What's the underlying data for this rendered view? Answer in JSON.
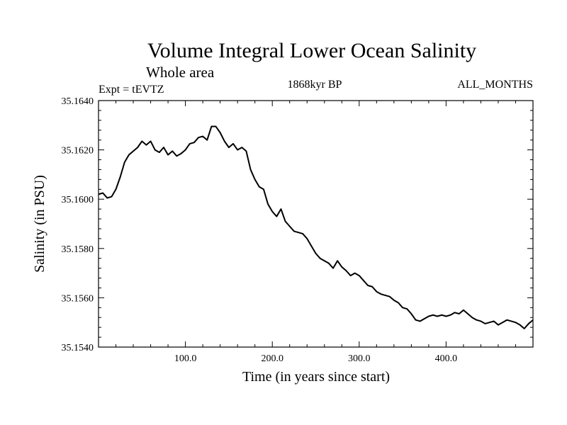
{
  "chart_data": {
    "type": "line",
    "title": "Volume Integral Lower Ocean Salinity",
    "subtitle": "Whole area",
    "left_label": "Expt = tEVTZ",
    "center_label": "1868kyr BP",
    "right_label": "ALL_MONTHS",
    "xlabel": "Time (in years since start)",
    "ylabel": "Salinity (in PSU)",
    "xlim": [
      0,
      500
    ],
    "ylim": [
      35.154,
      35.164
    ],
    "x_ticks": [
      100,
      200,
      300,
      400
    ],
    "x_tick_labels": [
      "100.0",
      "200.0",
      "300.0",
      "400.0"
    ],
    "y_ticks": [
      35.154,
      35.156,
      35.158,
      35.16,
      35.162,
      35.164
    ],
    "y_tick_labels": [
      "35.1540",
      "35.1560",
      "35.1580",
      "35.1600",
      "35.1620",
      "35.1640"
    ],
    "grid": false,
    "line_color": "#000000",
    "series": [
      {
        "name": "salinity",
        "x": [
          0,
          5,
          10,
          15,
          20,
          25,
          30,
          35,
          40,
          45,
          50,
          55,
          60,
          65,
          70,
          75,
          80,
          85,
          90,
          95,
          100,
          105,
          110,
          115,
          120,
          125,
          130,
          135,
          140,
          145,
          150,
          155,
          160,
          165,
          170,
          175,
          180,
          185,
          190,
          195,
          200,
          205,
          210,
          215,
          220,
          225,
          230,
          235,
          240,
          245,
          250,
          255,
          260,
          265,
          270,
          275,
          280,
          285,
          290,
          295,
          300,
          305,
          310,
          315,
          320,
          325,
          330,
          335,
          340,
          345,
          350,
          355,
          360,
          365,
          370,
          375,
          380,
          385,
          390,
          395,
          400,
          405,
          410,
          415,
          420,
          425,
          430,
          435,
          440,
          445,
          450,
          455,
          460,
          465,
          470,
          475,
          480,
          485,
          490,
          495,
          500
        ],
        "values": [
          35.1602,
          35.16025,
          35.16005,
          35.1601,
          35.1604,
          35.1609,
          35.1615,
          35.1618,
          35.16195,
          35.1621,
          35.16235,
          35.1622,
          35.16235,
          35.162,
          35.1619,
          35.1621,
          35.1618,
          35.16195,
          35.16175,
          35.16185,
          35.162,
          35.16225,
          35.1623,
          35.1625,
          35.16255,
          35.1624,
          35.16295,
          35.16295,
          35.1627,
          35.16235,
          35.1621,
          35.16225,
          35.162,
          35.1621,
          35.16195,
          35.1612,
          35.1608,
          35.1605,
          35.1604,
          35.1598,
          35.1595,
          35.1593,
          35.1596,
          35.1591,
          35.1589,
          35.1587,
          35.15865,
          35.1586,
          35.1584,
          35.1581,
          35.1578,
          35.1576,
          35.1575,
          35.1574,
          35.1572,
          35.1575,
          35.15725,
          35.1571,
          35.1569,
          35.157,
          35.1569,
          35.1567,
          35.1565,
          35.15645,
          35.15625,
          35.15615,
          35.1561,
          35.15605,
          35.1559,
          35.1558,
          35.1556,
          35.15555,
          35.15535,
          35.1551,
          35.15505,
          35.15515,
          35.15525,
          35.1553,
          35.15525,
          35.1553,
          35.15525,
          35.1553,
          35.1554,
          35.15535,
          35.1555,
          35.15535,
          35.1552,
          35.1551,
          35.15505,
          35.15495,
          35.155,
          35.15505,
          35.1549,
          35.155,
          35.1551,
          35.15505,
          35.155,
          35.1549,
          35.15475,
          35.15495,
          35.1551
        ]
      }
    ]
  }
}
